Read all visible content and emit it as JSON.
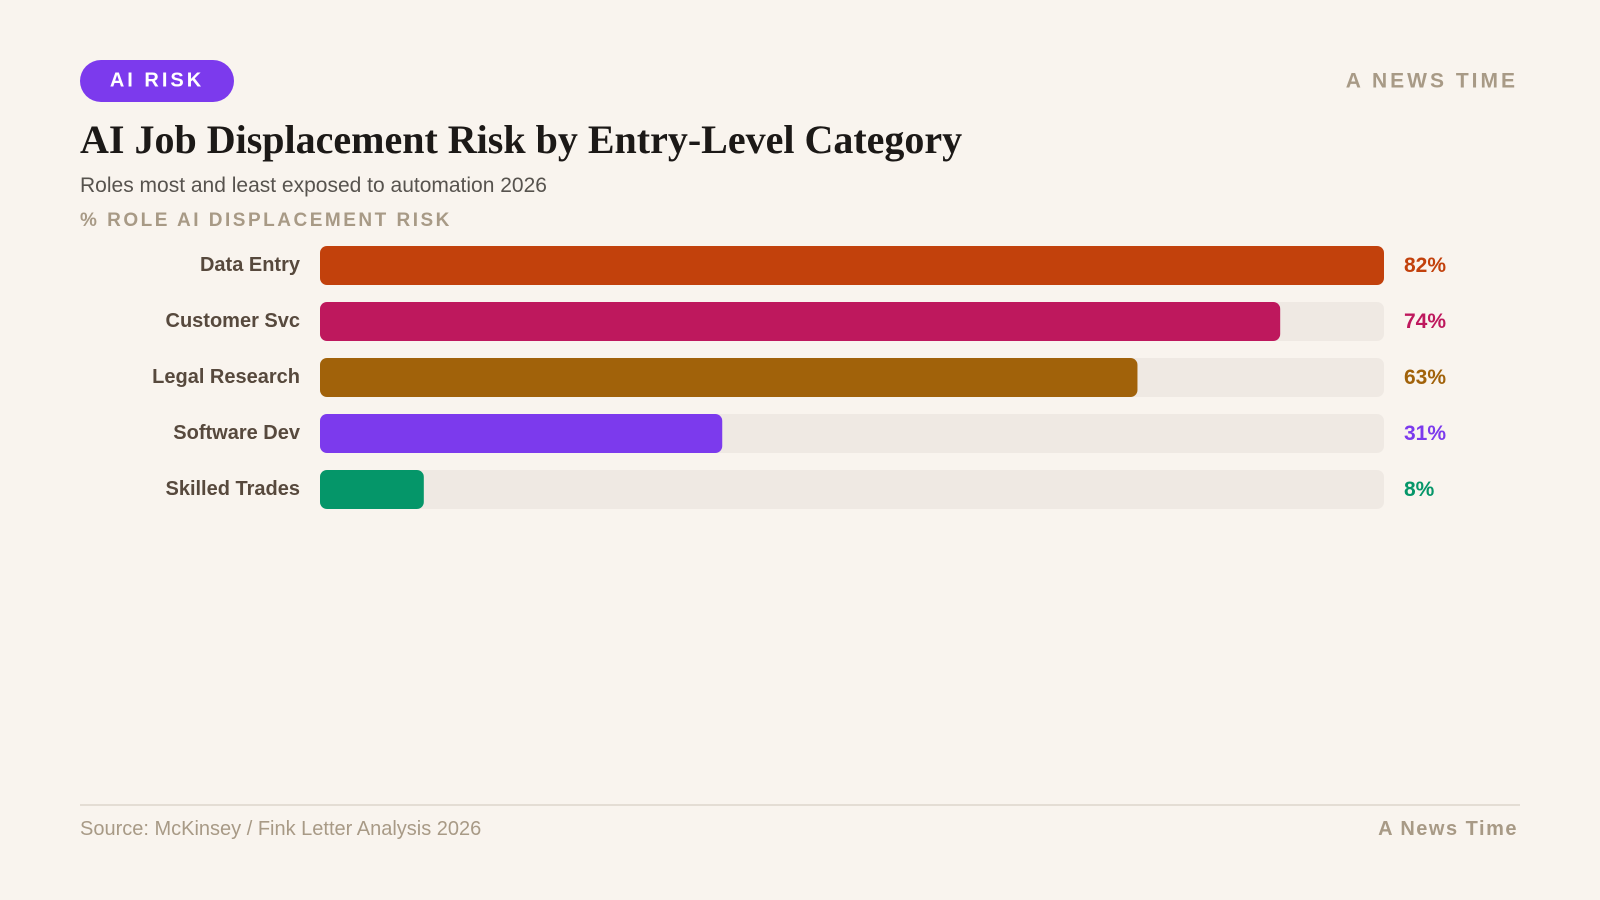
{
  "header": {
    "tag": "AI RISK",
    "brand": "A NEWS TIME"
  },
  "chart_data": {
    "type": "bar",
    "title": "AI Job Displacement Risk by Entry-Level Category",
    "subtitle": "Roles most and least exposed to automation 2026",
    "x_label": "% ROLE AI DISPLACEMENT RISK",
    "categories": [
      "Data Entry",
      "Customer Svc",
      "Legal Research",
      "Software Dev",
      "Skilled Trades"
    ],
    "values": [
      82,
      74,
      63,
      31,
      8
    ],
    "value_labels": [
      "82%",
      "74%",
      "63%",
      "31%",
      "8%"
    ],
    "colors": [
      "#c2410c",
      "#be185d",
      "#a1620a",
      "#7c3aed",
      "#059669"
    ]
  },
  "footer": {
    "source": "Source: McKinsey / Fink Letter Analysis 2026",
    "brand": "A News Time"
  }
}
